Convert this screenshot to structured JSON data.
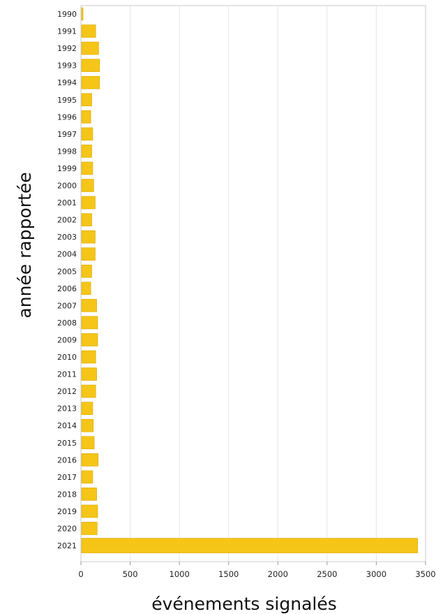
{
  "chart_data": {
    "type": "bar",
    "orientation": "horizontal",
    "xlabel": "événements signalés",
    "ylabel": "année rapportée",
    "xlim": [
      0,
      3500
    ],
    "xticks": [
      "0",
      "500",
      "1000",
      "1500",
      "2000",
      "2500",
      "3000",
      "3500"
    ],
    "grid": "vertical",
    "bar_color": "#F5C518",
    "categories": [
      "1990",
      "1991",
      "1992",
      "1993",
      "1994",
      "1995",
      "1996",
      "1997",
      "1998",
      "1999",
      "2000",
      "2001",
      "2002",
      "2003",
      "2004",
      "2005",
      "2006",
      "2007",
      "2008",
      "2009",
      "2010",
      "2011",
      "2012",
      "2013",
      "2014",
      "2015",
      "2016",
      "2017",
      "2018",
      "2019",
      "2020",
      "2021"
    ],
    "values": [
      15,
      150,
      180,
      190,
      190,
      110,
      100,
      120,
      110,
      120,
      130,
      145,
      110,
      145,
      145,
      110,
      100,
      160,
      170,
      170,
      150,
      160,
      150,
      120,
      125,
      135,
      175,
      120,
      160,
      170,
      165,
      3420
    ]
  }
}
